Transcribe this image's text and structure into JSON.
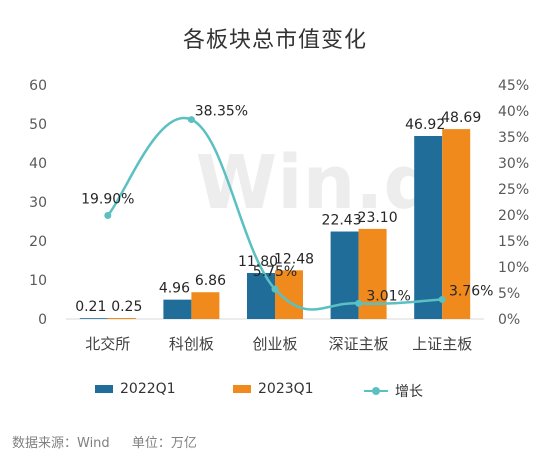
{
  "chart_data": {
    "type": "bar",
    "title": "各板块总市值变化",
    "categories": [
      "北交所",
      "科创板",
      "创业板",
      "深证主板",
      "上证主板"
    ],
    "series": [
      {
        "name": "2022Q1",
        "kind": "bar",
        "axis": "left",
        "color": "#1f6d98",
        "values": [
          0.21,
          4.96,
          11.8,
          22.43,
          46.92
        ],
        "labels": [
          "0.21",
          "4.96",
          "11.80",
          "22.43",
          "46.92"
        ]
      },
      {
        "name": "2023Q1",
        "kind": "bar",
        "axis": "left",
        "color": "#f08a1c",
        "values": [
          0.25,
          6.86,
          12.48,
          23.1,
          48.69
        ],
        "labels": [
          "0.25",
          "6.86",
          "12.48",
          "23.10",
          "48.69"
        ]
      },
      {
        "name": "增长",
        "kind": "line",
        "axis": "right",
        "color": "#5bc0c2",
        "smooth": true,
        "values": [
          0.199,
          0.3835,
          0.0575,
          0.0301,
          0.0376
        ],
        "labels": [
          "19.90%",
          "38.35%",
          "5.75%",
          "3.01%",
          "3.76%"
        ]
      }
    ],
    "y_left": {
      "min": 0,
      "max": 60,
      "ticks": [
        "0",
        "10",
        "20",
        "30",
        "40",
        "50",
        "60"
      ]
    },
    "y_right": {
      "min": 0,
      "max": 0.45,
      "ticks": [
        "0%",
        "5%",
        "10%",
        "15%",
        "20%",
        "25%",
        "30%",
        "35%",
        "40%",
        "45%"
      ]
    },
    "grid": false,
    "legend": "bottom",
    "watermark": "Win.d"
  },
  "footer": {
    "source": "数据来源：Wind",
    "unit": "单位：万亿"
  }
}
